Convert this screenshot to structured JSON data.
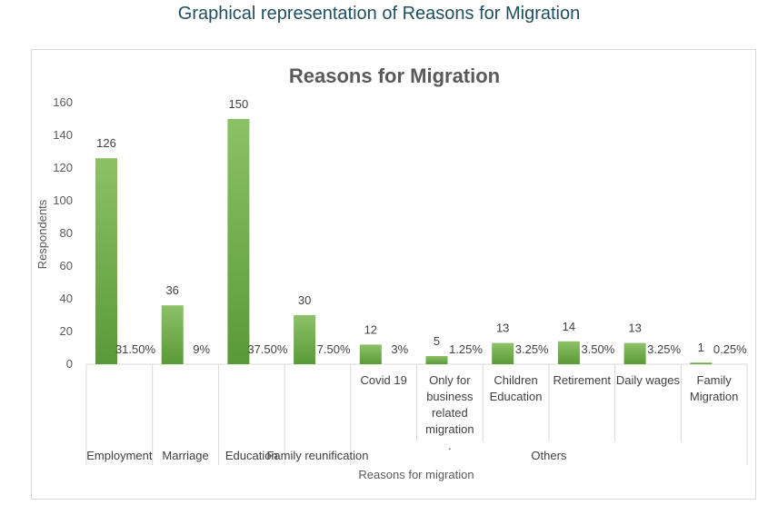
{
  "page": {
    "caption": "Graphical representation of Reasons for Migration"
  },
  "chart_data": {
    "type": "bar",
    "title": "Reasons for Migration",
    "xlabel": "Reasons for migration",
    "ylabel": "Respondents",
    "ylim": [
      0,
      160
    ],
    "yticks": [
      0,
      20,
      40,
      60,
      80,
      100,
      120,
      140,
      160
    ],
    "grid": false,
    "legend": "none",
    "colors": {
      "bar": "#70ad47",
      "bar_light": "#8cc168",
      "bar_dark": "#5a9a36",
      "axis": "#d9d9d9",
      "text": "#595959"
    },
    "groups": [
      {
        "label": "Employment",
        "categories": [
          ""
        ]
      },
      {
        "label": "Marriage",
        "categories": [
          ""
        ]
      },
      {
        "label": "Education",
        "categories": [
          ""
        ]
      },
      {
        "label": "Family reunification",
        "categories": [
          ""
        ]
      },
      {
        "label": "Others",
        "categories": [
          "Covid 19",
          "Only for business related migration .",
          "Children Education",
          "Retirement",
          "Daily wages",
          "Family Migration"
        ]
      }
    ],
    "series": [
      {
        "values": [
          126,
          36,
          150,
          30,
          12,
          5,
          13,
          14,
          13,
          1
        ]
      },
      {
        "values": [
          31.5,
          9,
          37.5,
          7.5,
          3,
          1.25,
          3.25,
          3.5,
          3.25,
          0.25
        ]
      }
    ],
    "data_labels": [
      [
        "126",
        "36",
        "150",
        "30",
        "12",
        "5",
        "13",
        "14",
        "13",
        "1"
      ],
      [
        "31.50%",
        "9%",
        "37.50%",
        "7.50%",
        "3%",
        "1.25%",
        "3.25%",
        "3.50%",
        "3.25%",
        "0.25%"
      ]
    ]
  }
}
